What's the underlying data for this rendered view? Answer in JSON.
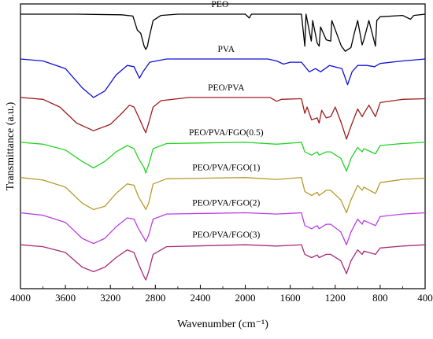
{
  "chart_data": {
    "type": "line",
    "xlabel": "Wavenumber (cm⁻¹)",
    "ylabel": "Transmittance (a.u.)",
    "xlim": [
      4000,
      400
    ],
    "x_reversed": true,
    "x_ticks": [
      4000,
      3600,
      3200,
      2800,
      2400,
      2000,
      1600,
      1200,
      800,
      400
    ],
    "y_ticks": "none",
    "grid": false,
    "legend": "labels placed above each curve",
    "series": [
      {
        "name": "PEO",
        "color": "#000000",
        "offset": 0,
        "points": [
          [
            4000,
            0
          ],
          [
            3500,
            0
          ],
          [
            3100,
            -0.1
          ],
          [
            3000,
            -0.3
          ],
          [
            2960,
            -2.5
          ],
          [
            2930,
            -3
          ],
          [
            2900,
            -5
          ],
          [
            2885,
            -5.5
          ],
          [
            2870,
            -5
          ],
          [
            2860,
            -4
          ],
          [
            2820,
            -1
          ],
          [
            2750,
            -0.2
          ],
          [
            2600,
            0
          ],
          [
            2000,
            0
          ],
          [
            1965,
            -0.6
          ],
          [
            1945,
            0
          ],
          [
            1500,
            0
          ],
          [
            1470,
            -5
          ],
          [
            1460,
            0
          ],
          [
            1413,
            -4.2
          ],
          [
            1400,
            -1
          ],
          [
            1360,
            -4.5
          ],
          [
            1343,
            -5
          ],
          [
            1330,
            -2
          ],
          [
            1280,
            -4
          ],
          [
            1240,
            -4.2
          ],
          [
            1230,
            -1
          ],
          [
            1145,
            -5
          ],
          [
            1110,
            -5.8
          ],
          [
            1060,
            -5.2
          ],
          [
            1030,
            -3
          ],
          [
            1000,
            -1
          ],
          [
            960,
            -4.8
          ],
          [
            945,
            -4
          ],
          [
            900,
            -1
          ],
          [
            842,
            -5
          ],
          [
            830,
            -1
          ],
          [
            800,
            -0.4
          ],
          [
            600,
            -0.2
          ],
          [
            530,
            -0.8
          ],
          [
            500,
            -0.2
          ],
          [
            400,
            0
          ]
        ]
      },
      {
        "name": "PVA",
        "color": "#1010d8",
        "offset": 7,
        "points": [
          [
            4000,
            0
          ],
          [
            3800,
            -0.3
          ],
          [
            3600,
            -1.5
          ],
          [
            3450,
            -4.5
          ],
          [
            3350,
            -6
          ],
          [
            3250,
            -5
          ],
          [
            3150,
            -2.5
          ],
          [
            3050,
            -1
          ],
          [
            2990,
            -1.2
          ],
          [
            2942,
            -3
          ],
          [
            2910,
            -2
          ],
          [
            2850,
            -0.5
          ],
          [
            2700,
            0
          ],
          [
            1800,
            0
          ],
          [
            1720,
            -0.3
          ],
          [
            1660,
            -0.8
          ],
          [
            1600,
            -0.5
          ],
          [
            1500,
            -0.5
          ],
          [
            1430,
            -2
          ],
          [
            1375,
            -1.5
          ],
          [
            1330,
            -2
          ],
          [
            1250,
            -1
          ],
          [
            1140,
            -1.5
          ],
          [
            1090,
            -4
          ],
          [
            1050,
            -2
          ],
          [
            1000,
            -1
          ],
          [
            920,
            -1
          ],
          [
            850,
            -1.2
          ],
          [
            800,
            -0.7
          ],
          [
            600,
            -0.3
          ],
          [
            400,
            0
          ]
        ]
      },
      {
        "name": "PEO/PVA",
        "color": "#a01c1c",
        "offset": 13,
        "points": [
          [
            4000,
            0
          ],
          [
            3800,
            -0.3
          ],
          [
            3650,
            -1.5
          ],
          [
            3500,
            -4
          ],
          [
            3350,
            -5.2
          ],
          [
            3200,
            -4.2
          ],
          [
            3100,
            -2.5
          ],
          [
            3030,
            -1.2
          ],
          [
            2990,
            -1.5
          ],
          [
            2950,
            -3
          ],
          [
            2900,
            -5
          ],
          [
            2885,
            -5.5
          ],
          [
            2860,
            -4
          ],
          [
            2820,
            -1.5
          ],
          [
            2750,
            -0.5
          ],
          [
            2500,
            0
          ],
          [
            1780,
            0
          ],
          [
            1720,
            -0.6
          ],
          [
            1680,
            -0.3
          ],
          [
            1500,
            -0.2
          ],
          [
            1470,
            -2.5
          ],
          [
            1450,
            -1.5
          ],
          [
            1410,
            -3.5
          ],
          [
            1360,
            -3.2
          ],
          [
            1343,
            -4
          ],
          [
            1320,
            -2
          ],
          [
            1280,
            -3.2
          ],
          [
            1240,
            -3
          ],
          [
            1200,
            -1.5
          ],
          [
            1145,
            -4
          ],
          [
            1100,
            -6.5
          ],
          [
            1060,
            -4.5
          ],
          [
            1000,
            -1.8
          ],
          [
            960,
            -3
          ],
          [
            945,
            -2.5
          ],
          [
            900,
            -1.2
          ],
          [
            842,
            -3
          ],
          [
            800,
            -0.8
          ],
          [
            600,
            -0.3
          ],
          [
            400,
            -0.2
          ]
        ]
      },
      {
        "name": "PEO/PVA/FGO(0.5)",
        "color": "#26d426",
        "offset": 20,
        "points": [
          [
            4000,
            0
          ],
          [
            3800,
            -0.3
          ],
          [
            3600,
            -1.2
          ],
          [
            3450,
            -3
          ],
          [
            3350,
            -4
          ],
          [
            3250,
            -3
          ],
          [
            3150,
            -1.5
          ],
          [
            3050,
            -0.5
          ],
          [
            2990,
            -1
          ],
          [
            2950,
            -2.5
          ],
          [
            2900,
            -4
          ],
          [
            2885,
            -4.8
          ],
          [
            2860,
            -3.5
          ],
          [
            2820,
            -1
          ],
          [
            2700,
            -0.2
          ],
          [
            2000,
            0
          ],
          [
            1720,
            -0.3
          ],
          [
            1500,
            0
          ],
          [
            1470,
            -1.5
          ],
          [
            1410,
            -2
          ],
          [
            1360,
            -1.5
          ],
          [
            1343,
            -2
          ],
          [
            1280,
            -1.5
          ],
          [
            1240,
            -1.5
          ],
          [
            1150,
            -2.5
          ],
          [
            1100,
            -4.5
          ],
          [
            1060,
            -2.5
          ],
          [
            1000,
            -0.8
          ],
          [
            960,
            -1.5
          ],
          [
            945,
            -1
          ],
          [
            842,
            -1.8
          ],
          [
            800,
            -0.5
          ],
          [
            600,
            -0.2
          ],
          [
            400,
            0
          ]
        ]
      },
      {
        "name": "PEO/PVA/FGO(1)",
        "color": "#b89a2e",
        "offset": 25.5,
        "points": [
          [
            4000,
            0
          ],
          [
            3800,
            -0.4
          ],
          [
            3600,
            -1.5
          ],
          [
            3450,
            -4
          ],
          [
            3350,
            -5
          ],
          [
            3250,
            -4.5
          ],
          [
            3150,
            -2.5
          ],
          [
            3050,
            -1
          ],
          [
            2990,
            -1.2
          ],
          [
            2950,
            -3
          ],
          [
            2900,
            -4.5
          ],
          [
            2885,
            -5
          ],
          [
            2860,
            -4
          ],
          [
            2820,
            -1
          ],
          [
            2700,
            -0.2
          ],
          [
            2000,
            0
          ],
          [
            1720,
            -0.3
          ],
          [
            1500,
            0
          ],
          [
            1470,
            -2.2
          ],
          [
            1410,
            -2.8
          ],
          [
            1360,
            -2.3
          ],
          [
            1343,
            -2.8
          ],
          [
            1280,
            -2
          ],
          [
            1240,
            -2
          ],
          [
            1150,
            -3.5
          ],
          [
            1100,
            -5.5
          ],
          [
            1060,
            -3.5
          ],
          [
            1000,
            -1.2
          ],
          [
            960,
            -2
          ],
          [
            945,
            -1.5
          ],
          [
            842,
            -2.5
          ],
          [
            800,
            -0.8
          ],
          [
            600,
            -0.3
          ],
          [
            400,
            -0.1
          ]
        ]
      },
      {
        "name": "PEO/PVA/FGO(2)",
        "color": "#bb3ee8",
        "offset": 31,
        "points": [
          [
            4000,
            0
          ],
          [
            3800,
            -0.4
          ],
          [
            3600,
            -1.5
          ],
          [
            3450,
            -4
          ],
          [
            3350,
            -4.8
          ],
          [
            3250,
            -4
          ],
          [
            3150,
            -2.2
          ],
          [
            3050,
            -0.8
          ],
          [
            2990,
            -1
          ],
          [
            2950,
            -2.5
          ],
          [
            2900,
            -4
          ],
          [
            2885,
            -4.5
          ],
          [
            2860,
            -3.5
          ],
          [
            2820,
            -1
          ],
          [
            2700,
            -0.2
          ],
          [
            2000,
            0
          ],
          [
            1720,
            -0.2
          ],
          [
            1500,
            0
          ],
          [
            1470,
            -2
          ],
          [
            1410,
            -2.5
          ],
          [
            1360,
            -2
          ],
          [
            1343,
            -2.5
          ],
          [
            1280,
            -1.8
          ],
          [
            1240,
            -1.8
          ],
          [
            1150,
            -3
          ],
          [
            1100,
            -5
          ],
          [
            1060,
            -3
          ],
          [
            1000,
            -1
          ],
          [
            960,
            -1.8
          ],
          [
            945,
            -1.2
          ],
          [
            842,
            -2
          ],
          [
            800,
            -0.6
          ],
          [
            600,
            -0.2
          ],
          [
            400,
            0
          ]
        ]
      },
      {
        "name": "PEO/PVA/FGO(3)",
        "color": "#aa2a7a",
        "offset": 36,
        "points": [
          [
            4000,
            0
          ],
          [
            3800,
            -0.3
          ],
          [
            3600,
            -1.2
          ],
          [
            3450,
            -3.5
          ],
          [
            3350,
            -4.2
          ],
          [
            3250,
            -3.5
          ],
          [
            3150,
            -2
          ],
          [
            3050,
            -0.8
          ],
          [
            2990,
            -1.2
          ],
          [
            2950,
            -3
          ],
          [
            2900,
            -5
          ],
          [
            2885,
            -5.5
          ],
          [
            2860,
            -4.2
          ],
          [
            2820,
            -1.5
          ],
          [
            2700,
            -0.3
          ],
          [
            2000,
            0
          ],
          [
            1720,
            -0.2
          ],
          [
            1500,
            0
          ],
          [
            1470,
            -1.5
          ],
          [
            1410,
            -2
          ],
          [
            1360,
            -1.6
          ],
          [
            1343,
            -2
          ],
          [
            1280,
            -1.5
          ],
          [
            1240,
            -1.5
          ],
          [
            1150,
            -2.5
          ],
          [
            1100,
            -4.5
          ],
          [
            1060,
            -2.5
          ],
          [
            1000,
            -0.8
          ],
          [
            960,
            -1.5
          ],
          [
            945,
            -1
          ],
          [
            842,
            -1.5
          ],
          [
            800,
            -0.5
          ],
          [
            600,
            -0.2
          ],
          [
            400,
            0
          ]
        ]
      }
    ]
  }
}
